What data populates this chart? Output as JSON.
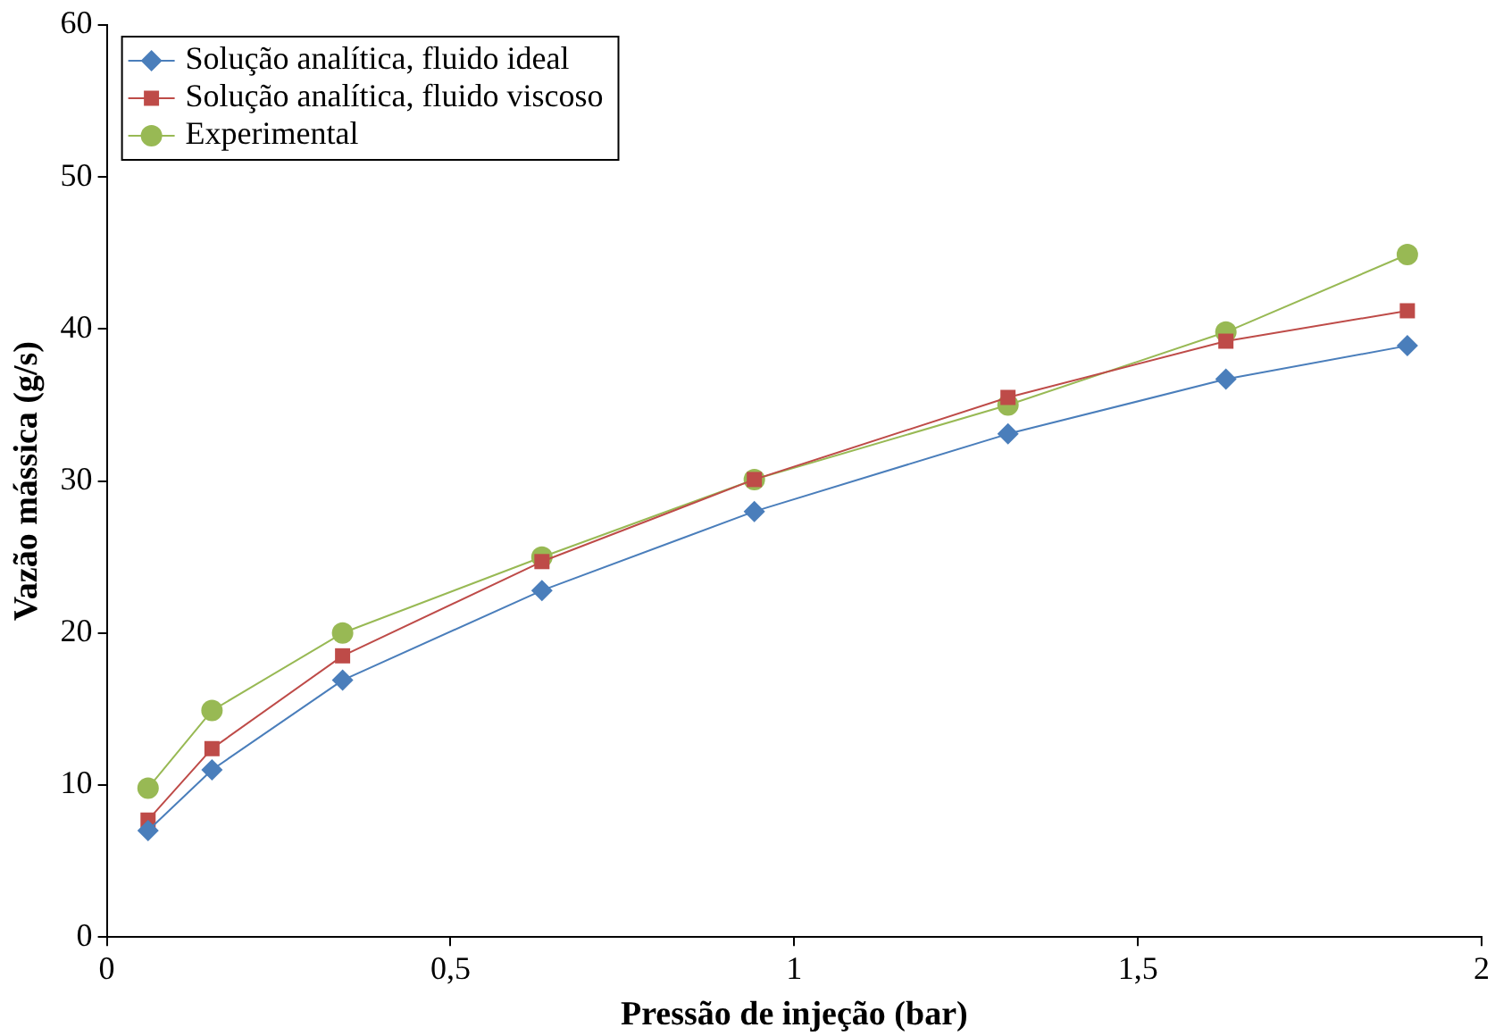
{
  "chart_data": {
    "type": "line",
    "xlabel": "Pressão de injeção (bar)",
    "ylabel": "Vazão mássica (g/s)",
    "x": [
      0.06,
      0.153,
      0.343,
      0.633,
      0.942,
      1.311,
      1.628,
      1.892
    ],
    "series": [
      {
        "name": "Solução analítica, fluido ideal",
        "color": "#4a7ebb",
        "marker": "diamond",
        "values": [
          7,
          11,
          16.9,
          22.8,
          28,
          33.1,
          36.7,
          38.9
        ]
      },
      {
        "name": "Solução analítica, fluido viscoso",
        "color": "#be4b48",
        "marker": "square",
        "values": [
          7.7,
          12.4,
          18.5,
          24.7,
          30.1,
          35.5,
          39.2,
          41.2
        ]
      },
      {
        "name": "Experimental",
        "color": "#98b954",
        "marker": "circle",
        "values": [
          9.8,
          14.9,
          20,
          25,
          30.1,
          35,
          39.8,
          44.9
        ]
      }
    ],
    "xlim": [
      0,
      2
    ],
    "xticks": [
      0,
      {
        "value": 0.5,
        "label": "0,5"
      },
      1,
      {
        "value": 1.5,
        "label": "1,5"
      },
      2
    ],
    "ylim": [
      0,
      60
    ],
    "yticks": [
      0,
      10,
      20,
      30,
      40,
      50,
      60
    ],
    "grid": false,
    "legend": "top left",
    "line_style": "solid"
  }
}
